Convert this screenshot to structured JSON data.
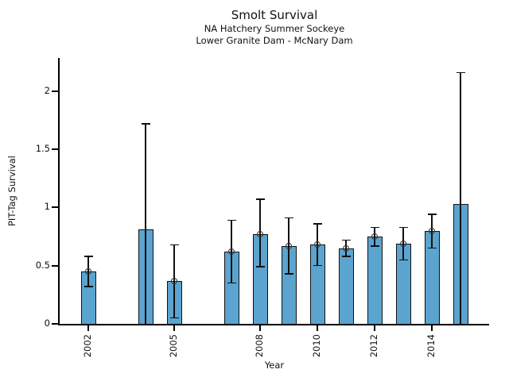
{
  "chart_data": {
    "type": "bar",
    "title": "Smolt Survival",
    "subtitle1": "NA Hatchery Summer Sockeye",
    "subtitle2": "Lower Granite Dam - McNary Dam",
    "xlabel": "Year",
    "ylabel": "PIT-Tag Survival",
    "xlim": [
      2001,
      2016
    ],
    "ylim": [
      0,
      2.285
    ],
    "x_ticks": [
      2002,
      2005,
      2008,
      2010,
      2012,
      2014
    ],
    "y_ticks": [
      0,
      0.5,
      1,
      1.5,
      2
    ],
    "y_tick_labels": [
      "0",
      "0.5",
      "1",
      "1.5",
      "2"
    ],
    "grid": false,
    "legend": false,
    "bar_color": "#5BA4CF",
    "bar_edge_color": "#111111",
    "error_color": "#111111",
    "series": [
      {
        "name": "PIT-Tag Survival",
        "x": [
          2002,
          2004,
          2005,
          2007,
          2008,
          2009,
          2010,
          2011,
          2012,
          2013,
          2014,
          2015
        ],
        "values": [
          0.45,
          0.81,
          0.37,
          0.62,
          0.77,
          0.67,
          0.68,
          0.65,
          0.75,
          0.69,
          0.8,
          1.03
        ],
        "ci_low": [
          0.32,
          0.0,
          0.05,
          0.35,
          0.49,
          0.43,
          0.5,
          0.58,
          0.67,
          0.55,
          0.65,
          0.0
        ],
        "ci_high": [
          0.58,
          1.72,
          0.68,
          0.89,
          1.07,
          0.91,
          0.86,
          0.72,
          0.83,
          0.83,
          0.94,
          2.16
        ],
        "marker": [
          true,
          false,
          true,
          true,
          true,
          true,
          true,
          true,
          true,
          true,
          true,
          false
        ]
      }
    ]
  }
}
